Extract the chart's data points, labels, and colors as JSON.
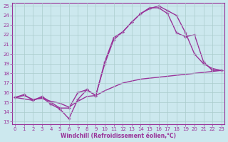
{
  "xlabel": "Windchill (Refroidissement éolien,°C)",
  "xlim": [
    0,
    23
  ],
  "ylim": [
    13,
    25
  ],
  "xticks": [
    0,
    1,
    2,
    3,
    4,
    5,
    6,
    7,
    8,
    9,
    10,
    11,
    12,
    13,
    14,
    15,
    16,
    17,
    18,
    19,
    20,
    21,
    22,
    23
  ],
  "yticks": [
    13,
    14,
    15,
    16,
    17,
    18,
    19,
    20,
    21,
    22,
    23,
    24,
    25
  ],
  "bg_color": "#cce8ee",
  "line_color": "#993399",
  "grid_color": "#aacccc",
  "lines": [
    {
      "x": [
        0,
        1,
        2,
        3,
        4,
        5,
        6,
        7,
        8,
        9,
        10,
        11,
        12,
        13,
        14,
        15,
        16,
        17,
        18,
        19,
        20,
        21,
        22,
        23
      ],
      "y": [
        15.5,
        15.7,
        15.3,
        15.4,
        15.1,
        14.9,
        14.5,
        15.1,
        15.6,
        15.7,
        16.2,
        16.6,
        17.0,
        17.2,
        17.4,
        17.5,
        17.6,
        17.7,
        17.8,
        17.9,
        18.0,
        18.1,
        18.2,
        18.3
      ],
      "marker": false,
      "linewidth": 1.0
    },
    {
      "x": [
        0,
        1,
        2,
        3,
        4,
        5,
        6,
        7,
        8,
        9,
        10,
        11,
        12,
        13,
        14,
        15,
        16,
        17,
        18,
        19,
        20,
        21,
        22,
        23
      ],
      "y": [
        15.5,
        15.8,
        15.2,
        15.5,
        14.8,
        14.3,
        13.3,
        15.3,
        16.3,
        15.7,
        19.0,
        21.5,
        22.3,
        23.3,
        24.2,
        24.7,
        25.0,
        24.5,
        24.0,
        22.2,
        20.0,
        19.0,
        18.5,
        18.3
      ],
      "marker": true,
      "linewidth": 1.0
    },
    {
      "x": [
        0,
        2,
        3,
        4,
        5,
        6,
        7,
        8,
        9,
        10,
        11,
        12,
        13,
        14,
        15,
        16,
        17,
        18,
        19,
        20,
        21,
        22,
        23
      ],
      "y": [
        15.5,
        15.2,
        15.6,
        15.0,
        14.4,
        14.4,
        16.0,
        16.3,
        15.7,
        19.2,
        21.7,
        22.3,
        23.3,
        24.2,
        24.8,
        24.8,
        24.2,
        22.2,
        21.8,
        22.0,
        19.2,
        18.3,
        18.3
      ],
      "marker": true,
      "linewidth": 1.0
    }
  ]
}
